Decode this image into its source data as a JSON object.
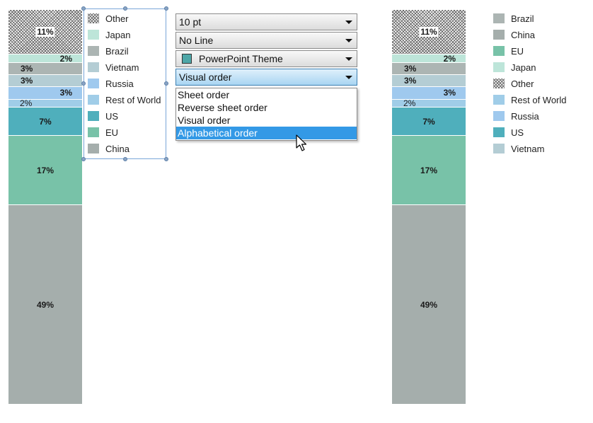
{
  "colors": {
    "china": "#a5aeac",
    "eu": "#78c2a8",
    "us": "#4fafbc",
    "rest_of_world": "#a0cde8",
    "russia": "#9fc9ee",
    "vietnam": "#b4cdd4",
    "brazil": "#acb5b3",
    "japan": "#bde5d9",
    "other": "hatch",
    "selection_border": "#7aa6d8",
    "highlight": "#3399e6"
  },
  "chart_left": {
    "segments": [
      {
        "key": "china",
        "value": 49,
        "label": "49%"
      },
      {
        "key": "eu",
        "value": 17,
        "label": "17%"
      },
      {
        "key": "us",
        "value": 7,
        "label": "7%"
      },
      {
        "key": "rest_of_world",
        "value": 2,
        "label": "2%"
      },
      {
        "key": "russia",
        "value": 3,
        "label": "3%"
      },
      {
        "key": "vietnam",
        "value": 3,
        "label": "3%"
      },
      {
        "key": "brazil",
        "value": 3,
        "label": "3%"
      },
      {
        "key": "japan",
        "value": 2,
        "label": "2%"
      },
      {
        "key": "other",
        "value": 11,
        "label": "11%"
      }
    ]
  },
  "legend_left": {
    "items": [
      {
        "key": "other",
        "label": "Other",
        "icon": "hatch-swatch"
      },
      {
        "key": "japan",
        "label": "Japan"
      },
      {
        "key": "brazil",
        "label": "Brazil"
      },
      {
        "key": "vietnam",
        "label": "Vietnam"
      },
      {
        "key": "russia",
        "label": "Russia"
      },
      {
        "key": "rest_of_world",
        "label": "Rest of World"
      },
      {
        "key": "us",
        "label": "US"
      },
      {
        "key": "eu",
        "label": "EU"
      },
      {
        "key": "china",
        "label": "China"
      }
    ]
  },
  "format_panel": {
    "font_size": "10 pt",
    "line": "No Line",
    "theme": "PowerPoint Theme",
    "order": "Visual order",
    "order_options": [
      "Sheet order",
      "Reverse sheet order",
      "Visual order",
      "Alphabetical order"
    ],
    "highlighted_option": "Alphabetical order"
  },
  "legend_right": {
    "items": [
      {
        "key": "brazil",
        "label": "Brazil"
      },
      {
        "key": "china",
        "label": "China"
      },
      {
        "key": "eu",
        "label": "EU"
      },
      {
        "key": "japan",
        "label": "Japan"
      },
      {
        "key": "other",
        "label": "Other",
        "icon": "hatch-swatch"
      },
      {
        "key": "rest_of_world",
        "label": "Rest of World"
      },
      {
        "key": "russia",
        "label": "Russia"
      },
      {
        "key": "us",
        "label": "US"
      },
      {
        "key": "vietnam",
        "label": "Vietnam"
      }
    ]
  }
}
